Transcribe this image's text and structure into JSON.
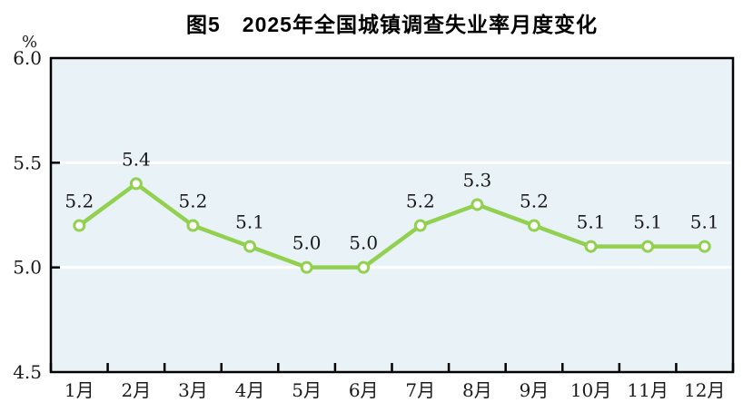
{
  "chart_data": {
    "type": "line",
    "title": "图5　2025年全国城镇调查失业率月度变化",
    "unit_label": "%",
    "categories": [
      "1月",
      "2月",
      "3月",
      "4月",
      "5月",
      "6月",
      "7月",
      "8月",
      "9月",
      "10月",
      "11月",
      "12月"
    ],
    "series": [
      {
        "name": "城镇调查失业率",
        "values": [
          5.2,
          5.4,
          5.2,
          5.1,
          5.0,
          5.0,
          5.2,
          5.3,
          5.2,
          5.1,
          5.1,
          5.1
        ]
      }
    ],
    "data_labels": [
      "5.2",
      "5.4",
      "5.2",
      "5.1",
      "5.0",
      "5.0",
      "5.2",
      "5.3",
      "5.2",
      "5.1",
      "5.1",
      "5.1"
    ],
    "ylim": [
      4.5,
      6.0
    ],
    "yticks": [
      "6.0",
      "5.5",
      "5.0",
      "4.5"
    ],
    "ytick_values": [
      6.0,
      5.5,
      5.0,
      4.5
    ],
    "gridline_values": [
      5.5,
      5.0
    ],
    "legend": "none",
    "colors": {
      "line": "#92D050",
      "marker_fill": "#FFFFFF",
      "plot_background": "#E9F2F7",
      "gridline": "#FFFFFF",
      "axis": "#000000",
      "text": "#1A1A1A",
      "title": "#000000"
    }
  }
}
